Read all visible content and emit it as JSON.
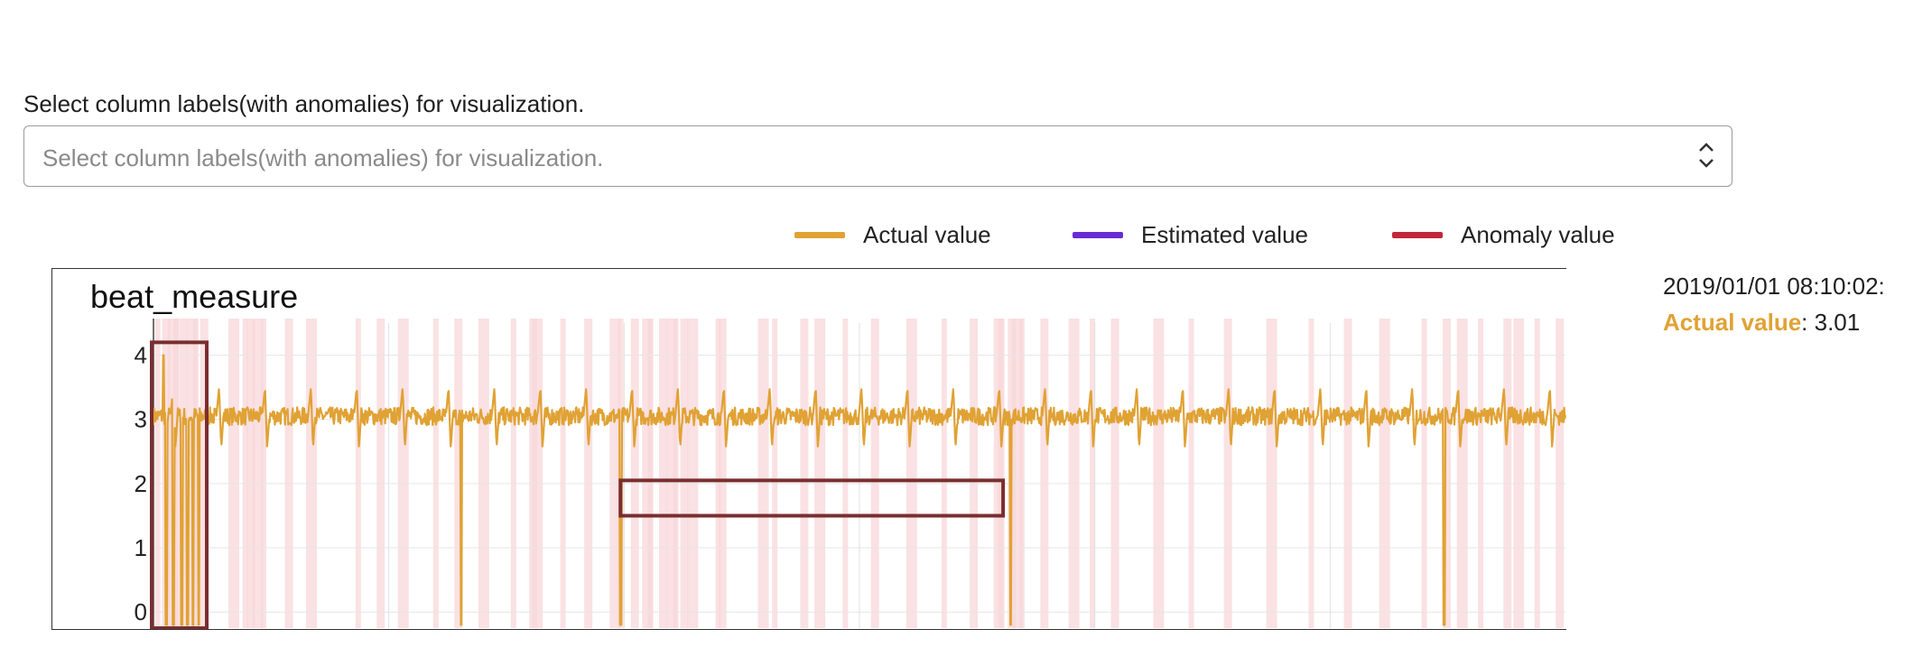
{
  "selector": {
    "label": "Select column labels(with anomalies) for visualization.",
    "placeholder": "Select column labels(with anomalies) for visualization."
  },
  "legend": [
    {
      "label": "Actual value",
      "color": "#e0a234"
    },
    {
      "label": "Estimated value",
      "color": "#6a2bd3"
    },
    {
      "label": "Anomaly value",
      "color": "#c0283a"
    }
  ],
  "tooltip": {
    "timestamp": "2019/01/01 08:10:02:",
    "label": "Actual value",
    "separator": ": ",
    "value": "3.01"
  },
  "chart_data": {
    "type": "line",
    "title": "beat_measure",
    "xlabel": "",
    "ylabel": "",
    "ylim": [
      -0.25,
      4.5
    ],
    "yticks": [
      0,
      1,
      2,
      3,
      4
    ],
    "grid": true,
    "x_range": [
      0,
      1000
    ],
    "series": [
      {
        "name": "Actual value",
        "color": "#e0a234",
        "baseline": 3.05,
        "beat_period": 32.5,
        "beat_phase": 12,
        "beat_peak": 3.5,
        "beat_dip": 2.55,
        "drops_to_zero_x": [
          9,
          14,
          20,
          24,
          28,
          32,
          218,
          331,
          607,
          914
        ],
        "spike_x": [
          7
        ],
        "spike_value": 4.0
      }
    ],
    "anomaly_bands_x": [
      3,
      8,
      12,
      16,
      20,
      25,
      30,
      35,
      55,
      65,
      68,
      72,
      78,
      95,
      110,
      145,
      160,
      175,
      200,
      215,
      232,
      255,
      268,
      270,
      290,
      307,
      325,
      331,
      340,
      348,
      352,
      360,
      365,
      370,
      375,
      380,
      400,
      402,
      430,
      440,
      460,
      470,
      490,
      510,
      535,
      560,
      580,
      597,
      600,
      607,
      610,
      615,
      630,
      650,
      665,
      680,
      710,
      735,
      760,
      790,
      820,
      845,
      870,
      900,
      915,
      925,
      940,
      958,
      965,
      980,
      995
    ],
    "anomaly_band_color": "#f8d7d9",
    "highlight_boxes": [
      {
        "x": [
          0,
          39
        ],
        "y": [
          -0.25,
          4.2
        ]
      },
      {
        "x": [
          332,
          603
        ],
        "y": [
          1.5,
          2.05
        ]
      }
    ],
    "highlight_color": "#7a2e30"
  }
}
